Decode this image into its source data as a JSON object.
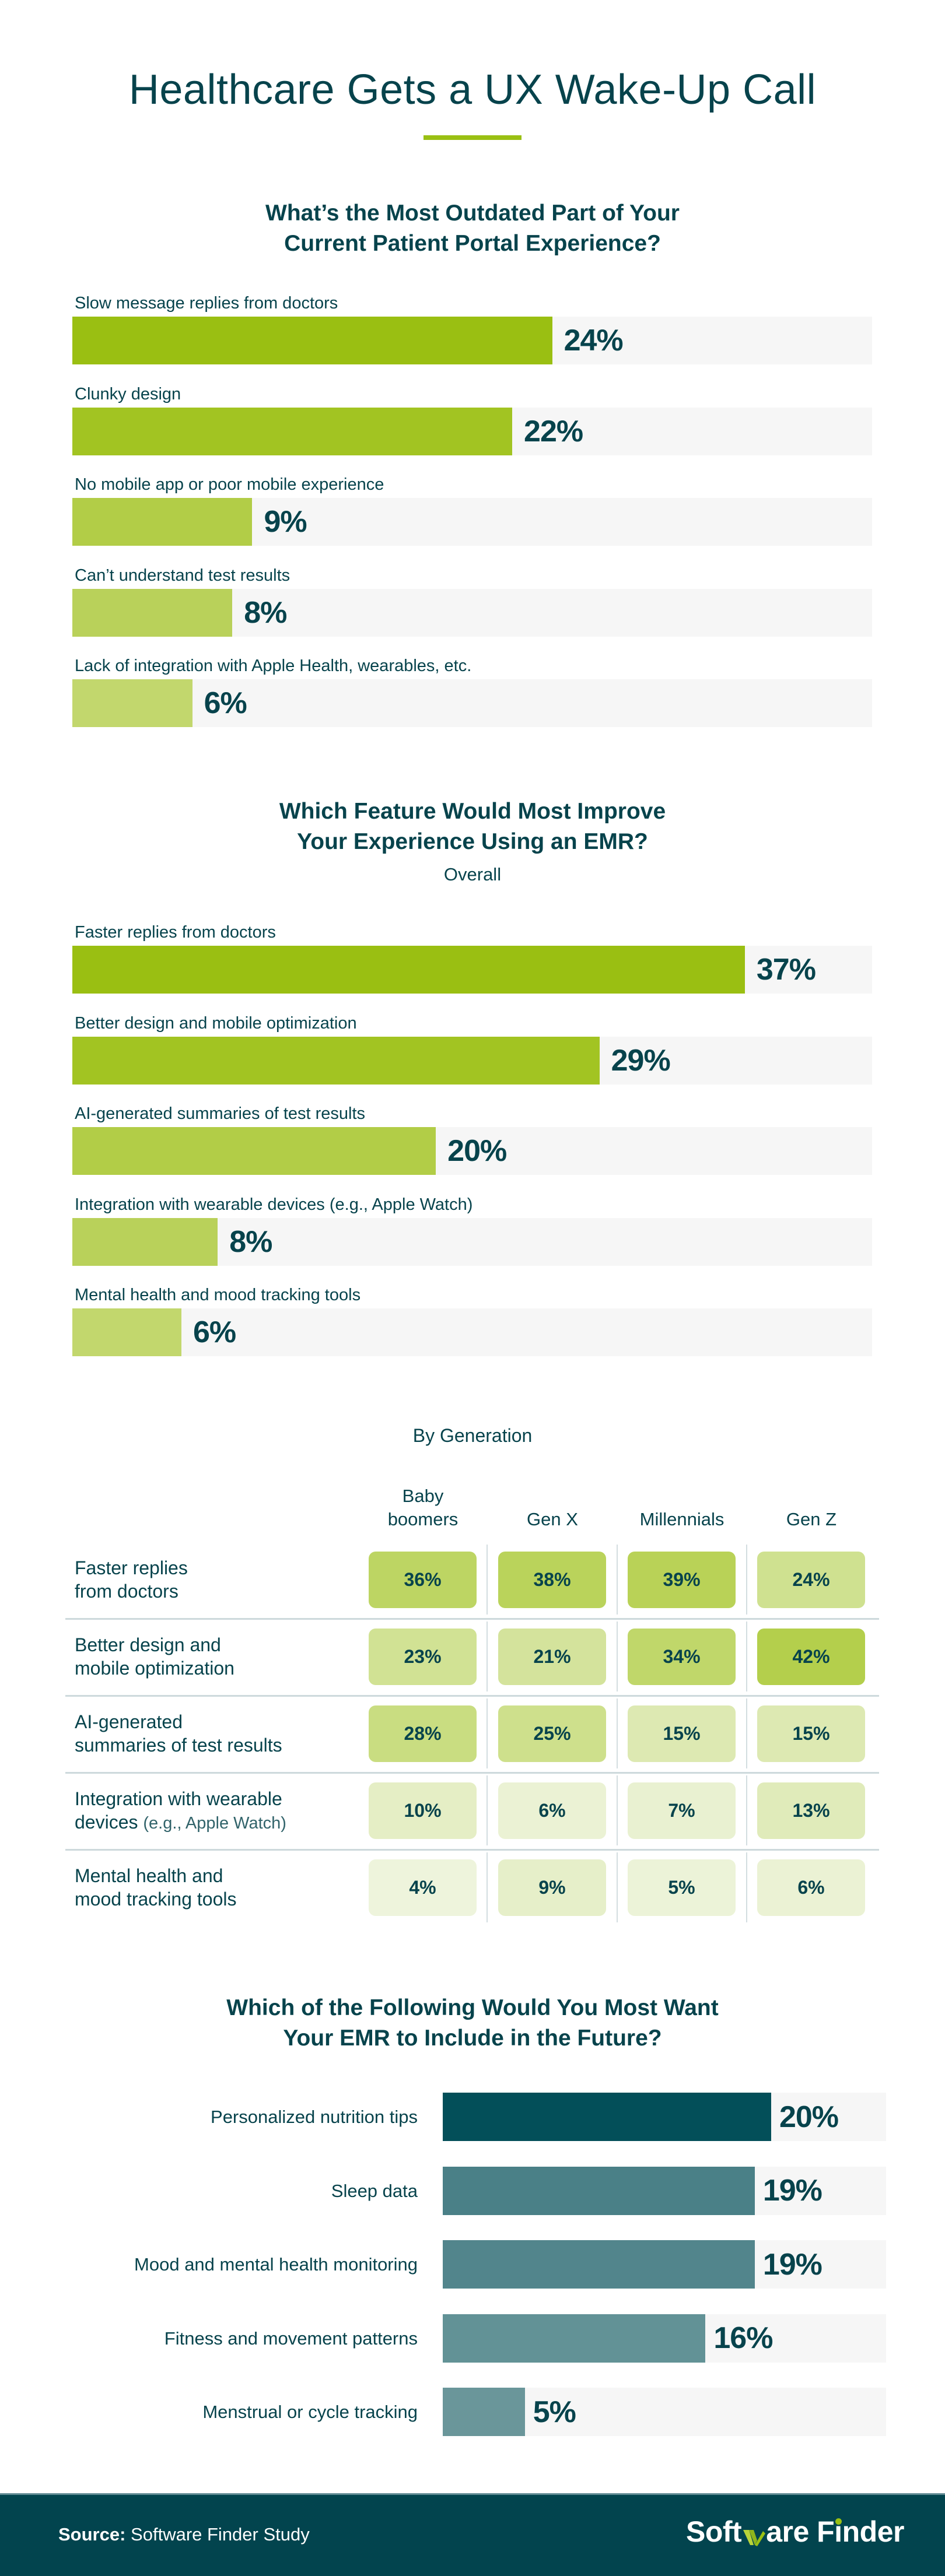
{
  "header": {
    "title": "Healthcare Gets a UX Wake-Up Call",
    "accent_color": "#9ac013",
    "text_color": "#07434c"
  },
  "chart_data": [
    {
      "type": "bar",
      "orientation": "horizontal",
      "title": "What’s the Most Outdated Part of Your Current Patient Portal Experience?",
      "title_lines": [
        "What’s the Most Outdated Part of Your",
        "Current Patient Portal Experience?"
      ],
      "categories": [
        "Slow message replies from doctors",
        "Clunky design",
        "No mobile app or poor mobile experience",
        "Can’t understand test results",
        "Lack of integration with Apple Health, wearables, etc."
      ],
      "values": [
        24,
        22,
        9,
        8,
        6
      ],
      "value_labels": [
        "24%",
        "22%",
        "9%",
        "8%",
        "6%"
      ],
      "colors": [
        "#9abf12",
        "#a2c422",
        "#b2cd47",
        "#b9d15a",
        "#c2d76d"
      ],
      "unit": "%",
      "xlim": [
        0,
        40
      ],
      "grid": false,
      "legend": "none"
    },
    {
      "type": "bar",
      "orientation": "horizontal",
      "title": "Which Feature Would Most Improve Your Experience Using an EMR?",
      "title_lines": [
        "Which Feature Would Most Improve",
        "Your Experience Using an EMR?"
      ],
      "subtitle": "Overall",
      "categories": [
        "Faster replies from doctors",
        "Better design and mobile optimization",
        "AI-generated summaries of test results",
        "Integration with wearable devices (e.g., Apple Watch)",
        "Mental health and mood tracking tools"
      ],
      "values": [
        37,
        29,
        20,
        8,
        6
      ],
      "value_labels": [
        "37%",
        "29%",
        "20%",
        "8%",
        "6%"
      ],
      "colors": [
        "#9abf12",
        "#a2c422",
        "#b2cd47",
        "#b9d15a",
        "#c2d76d"
      ],
      "unit": "%",
      "xlim": [
        0,
        44
      ],
      "grid": false,
      "legend": "none"
    },
    {
      "type": "heatmap",
      "title": "By Generation",
      "columns": [
        "Baby boomers",
        "Gen X",
        "Millennials",
        "Gen Z"
      ],
      "column_lines": [
        [
          "Baby",
          "boomers"
        ],
        [
          "Gen X"
        ],
        [
          "Millennials"
        ],
        [
          "Gen Z"
        ]
      ],
      "rows": [
        {
          "label_lines": [
            "Faster replies",
            "from doctors"
          ],
          "label_note": "",
          "values": [
            36,
            38,
            39,
            24
          ]
        },
        {
          "label_lines": [
            "Better design and",
            "mobile optimization"
          ],
          "label_note": "",
          "values": [
            23,
            21,
            34,
            42
          ]
        },
        {
          "label_lines": [
            "AI-generated",
            "summaries of test results"
          ],
          "label_note": "",
          "values": [
            28,
            25,
            15,
            15
          ]
        },
        {
          "label_lines": [
            "Integration with wearable",
            "devices"
          ],
          "label_note": "(e.g., Apple Watch)",
          "values": [
            10,
            6,
            7,
            13
          ]
        },
        {
          "label_lines": [
            "Mental health and",
            "mood tracking tools"
          ],
          "label_note": "",
          "values": [
            4,
            9,
            5,
            6
          ]
        }
      ],
      "unit": "%",
      "color_scale": {
        "low": "#eef4dc",
        "high": "#b4cf4c",
        "range": [
          4,
          42
        ]
      }
    },
    {
      "type": "bar",
      "orientation": "horizontal",
      "title": "Which of the Following Would You Most Want Your EMR to Include in the Future?",
      "title_lines": [
        "Which of the Following Would You Most Want",
        "Your EMR to Include in the Future?"
      ],
      "categories": [
        "Personalized nutrition tips",
        "Sleep data",
        "Mood and mental health monitoring",
        "Fitness and movement patterns",
        "Menstrual or cycle tracking"
      ],
      "values": [
        20,
        19,
        19,
        16,
        5
      ],
      "value_labels": [
        "20%",
        "19%",
        "19%",
        "16%",
        "5%"
      ],
      "colors": [
        "#034f59",
        "#4a8087",
        "#52858c",
        "#629296",
        "#6a969a"
      ],
      "unit": "%",
      "xlim": [
        0,
        27
      ],
      "grid": false,
      "legend": "none"
    }
  ],
  "footer": {
    "source_label": "Source:",
    "source_text": "Software Finder Study",
    "logo_part1": "Soft",
    "logo_part2": "are F",
    "logo_i": "i",
    "logo_part3": "nder",
    "logo_icon": "w-check-mark-icon",
    "background": "#02444e"
  }
}
